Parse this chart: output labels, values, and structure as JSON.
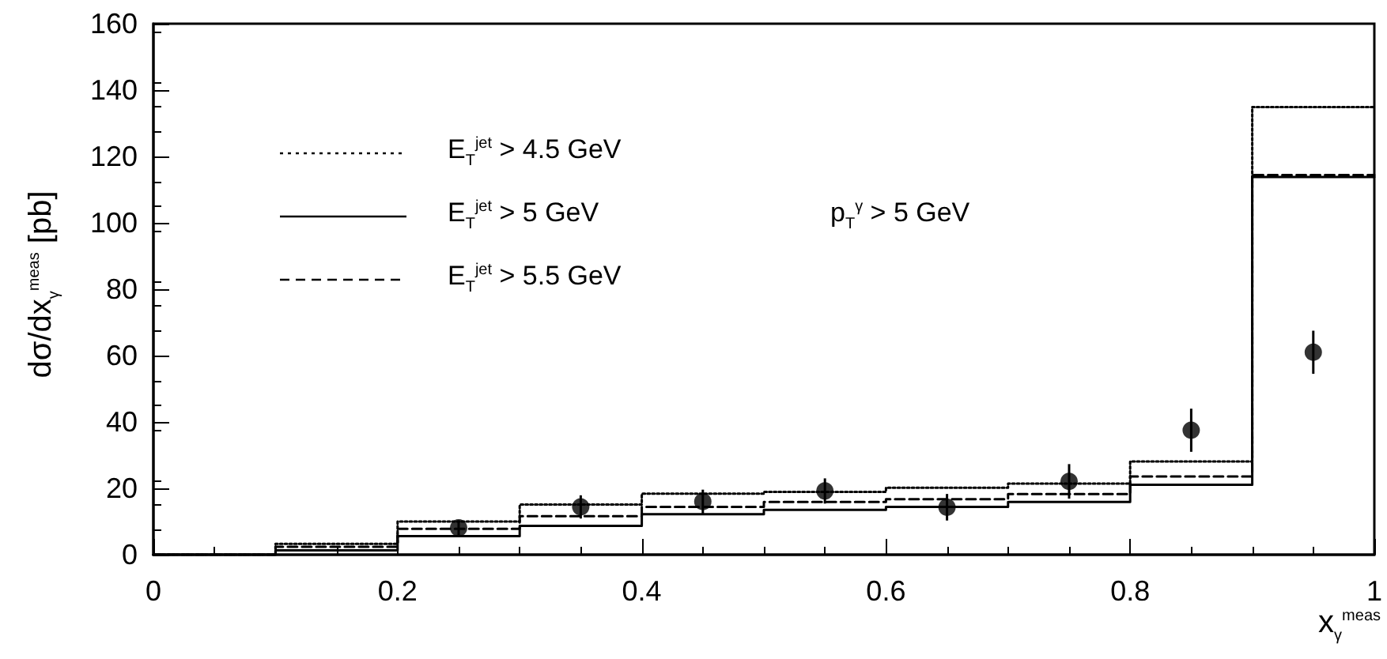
{
  "chart_data": {
    "type": "step",
    "xlabel": "x$_{γ}$$^{meas}$",
    "ylabel": "dσ/dx$_{γ}$$^{meas}$ [pb]",
    "annotations": [
      "p$_{T}$$^{γ}$ > 5 GeV"
    ],
    "xlim": [
      0,
      1
    ],
    "ylim": [
      0,
      160
    ],
    "xticks": [
      0,
      0.2,
      0.4,
      0.6,
      0.8,
      1
    ],
    "yticks": [
      0,
      20,
      40,
      60,
      80,
      100,
      120,
      140,
      160
    ],
    "grid": false,
    "legend": "top left",
    "marker": "none",
    "series": [
      {
        "name": "E$_{T}$$^{jet}$ > 4.5 GeV",
        "color": "#000000",
        "line_style": "dotted",
        "x": [
          0,
          0.1,
          0.2,
          0.3,
          0.4,
          0.5,
          0.6,
          0.7,
          0.8,
          0.9,
          1
        ],
        "values": [
          0,
          3.3,
          10,
          15.1,
          18.4,
          18.9,
          20.2,
          21.4,
          28.1,
          134.9,
          134.9
        ]
      },
      {
        "name": "E$_{T}$$^{jet}$ > 5 GeV",
        "color": "#000000",
        "line_style": "solid",
        "x": [
          0,
          0.1,
          0.2,
          0.3,
          0.4,
          0.5,
          0.6,
          0.7,
          0.8,
          0.9,
          1
        ],
        "values": [
          0,
          1.3,
          5.6,
          8.7,
          12.2,
          13.5,
          14.4,
          15.9,
          21.1,
          113.8,
          113.8
        ]
      },
      {
        "name": "E$_{T}$$^{jet}$ > 5.5 GeV",
        "color": "#000000",
        "line_style": "dashed",
        "x": [
          0,
          0.1,
          0.2,
          0.3,
          0.4,
          0.5,
          0.6,
          0.7,
          0.8,
          0.9,
          1
        ],
        "values": [
          0,
          2.4,
          7.8,
          11.6,
          14.4,
          15.9,
          16.7,
          18.3,
          23.6,
          114.4,
          114.4
        ]
      },
      {
        "type": "scatter",
        "marker": "circle",
        "color": "#000000",
        "x": [
          0.25,
          0.35,
          0.45,
          0.55,
          0.65,
          0.75,
          0.85,
          0.95
        ],
        "values": [
          8.1,
          14.4,
          16,
          19.2,
          14.3,
          22.1,
          37.5,
          61
        ],
        "errors": [
          2.2,
          3.5,
          3.6,
          3.8,
          4,
          5.2,
          6.5,
          6.5
        ]
      }
    ]
  }
}
